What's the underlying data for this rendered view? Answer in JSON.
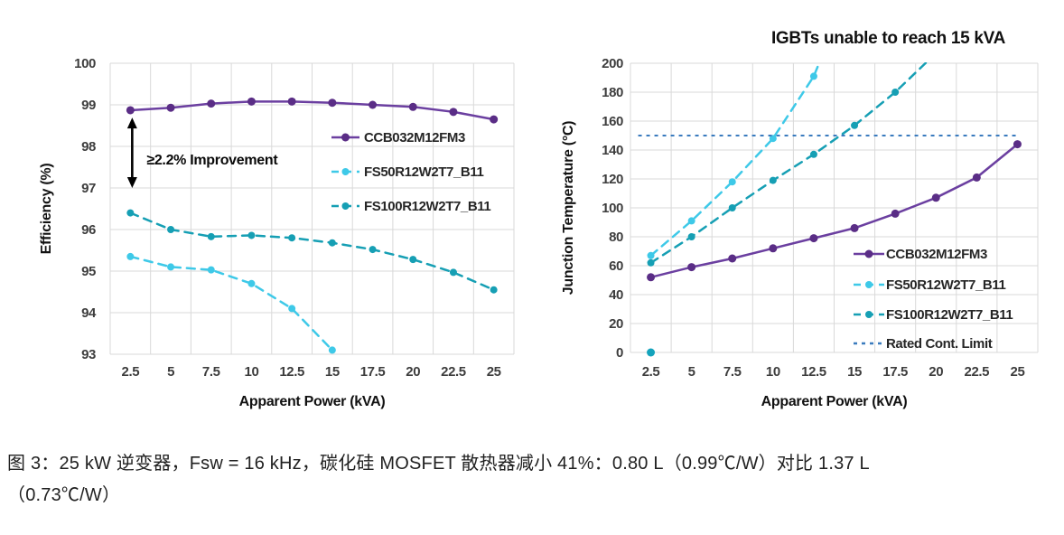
{
  "figure": {
    "caption_lines": [
      "图 3：25 kW 逆变器，Fsw = 16 kHz，碳化硅 MOSFET 散热器减小 41%：0.80 L（0.99℃/W）对比 1.37 L",
      "（0.73℃/W）"
    ]
  },
  "chart_data": [
    {
      "type": "line",
      "title": "",
      "xlabel": "Apparent Power (kVA)",
      "ylabel": "Efficiency (%)",
      "x_values": [
        2.5,
        5,
        7.5,
        10,
        12.5,
        15,
        17.5,
        20,
        22.5,
        25
      ],
      "x_tick_labels": [
        "2.5",
        "5",
        "7.5",
        "10",
        "12.5",
        "15",
        "17.5",
        "20",
        "22.5",
        "25"
      ],
      "ylim": [
        93,
        100
      ],
      "ytick_step": 1,
      "grid": true,
      "legend_position": "inside-right",
      "annotation": {
        "text": "≥2.2% Improvement",
        "at_x": 2.5,
        "from_y": 98.78,
        "to_y": 97.0
      },
      "series": [
        {
          "name": "CCB032M12FM3",
          "color": "#6B3FA0",
          "marker_color": "#5A2D86",
          "style": "solid",
          "values": [
            98.87,
            98.93,
            99.03,
            99.08,
            99.08,
            99.05,
            99.0,
            98.95,
            98.83,
            98.65
          ]
        },
        {
          "name": "FS50R12W2T7_B11",
          "color": "#3EC9E8",
          "style": "dashed",
          "values": [
            95.35,
            95.1,
            95.03,
            94.7,
            94.1,
            93.1,
            null,
            null,
            null,
            null
          ]
        },
        {
          "name": "FS100R12W2T7_B11",
          "color": "#169FB4",
          "style": "dashed",
          "values": [
            96.4,
            96.0,
            95.83,
            95.86,
            95.8,
            95.68,
            95.52,
            95.28,
            94.97,
            94.55
          ]
        }
      ]
    },
    {
      "type": "line",
      "title": "IGBTs unable to reach 15 kVA",
      "xlabel": "Apparent Power (kVA)",
      "ylabel": "Junction Temperature (°C)",
      "x_values": [
        2.5,
        5,
        7.5,
        10,
        12.5,
        15,
        17.5,
        20,
        22.5,
        25
      ],
      "x_tick_labels": [
        "2.5",
        "5",
        "7.5",
        "10",
        "12.5",
        "15",
        "17.5",
        "20",
        "22.5",
        "25"
      ],
      "ylim": [
        0,
        200
      ],
      "ytick_step": 20,
      "grid": true,
      "legend_position": "inside-right-bottom",
      "stray_point": {
        "x": 2.5,
        "y": 0,
        "color": "#14A3BC"
      },
      "series": [
        {
          "name": "CCB032M12FM3",
          "color": "#6B3FA0",
          "marker_color": "#5A2D86",
          "style": "solid",
          "values": [
            52,
            59,
            65,
            72,
            79,
            86,
            96,
            107,
            121,
            144
          ]
        },
        {
          "name": "FS50R12W2T7_B11",
          "color": "#3EC9E8",
          "style": "dashed",
          "values": [
            67,
            91,
            118,
            148,
            191,
            null,
            null,
            null,
            null,
            null
          ],
          "tail": [
            15,
            260
          ]
        },
        {
          "name": "FS100R12W2T7_B11",
          "color": "#169FB4",
          "style": "dashed",
          "values": [
            62,
            80,
            100,
            119,
            137,
            157,
            180,
            null,
            null,
            null
          ],
          "tail": [
            20,
            207
          ]
        },
        {
          "name": "Rated Cont. Limit",
          "color": "#3A7BBE",
          "style": "hline",
          "y": 150
        }
      ]
    }
  ]
}
